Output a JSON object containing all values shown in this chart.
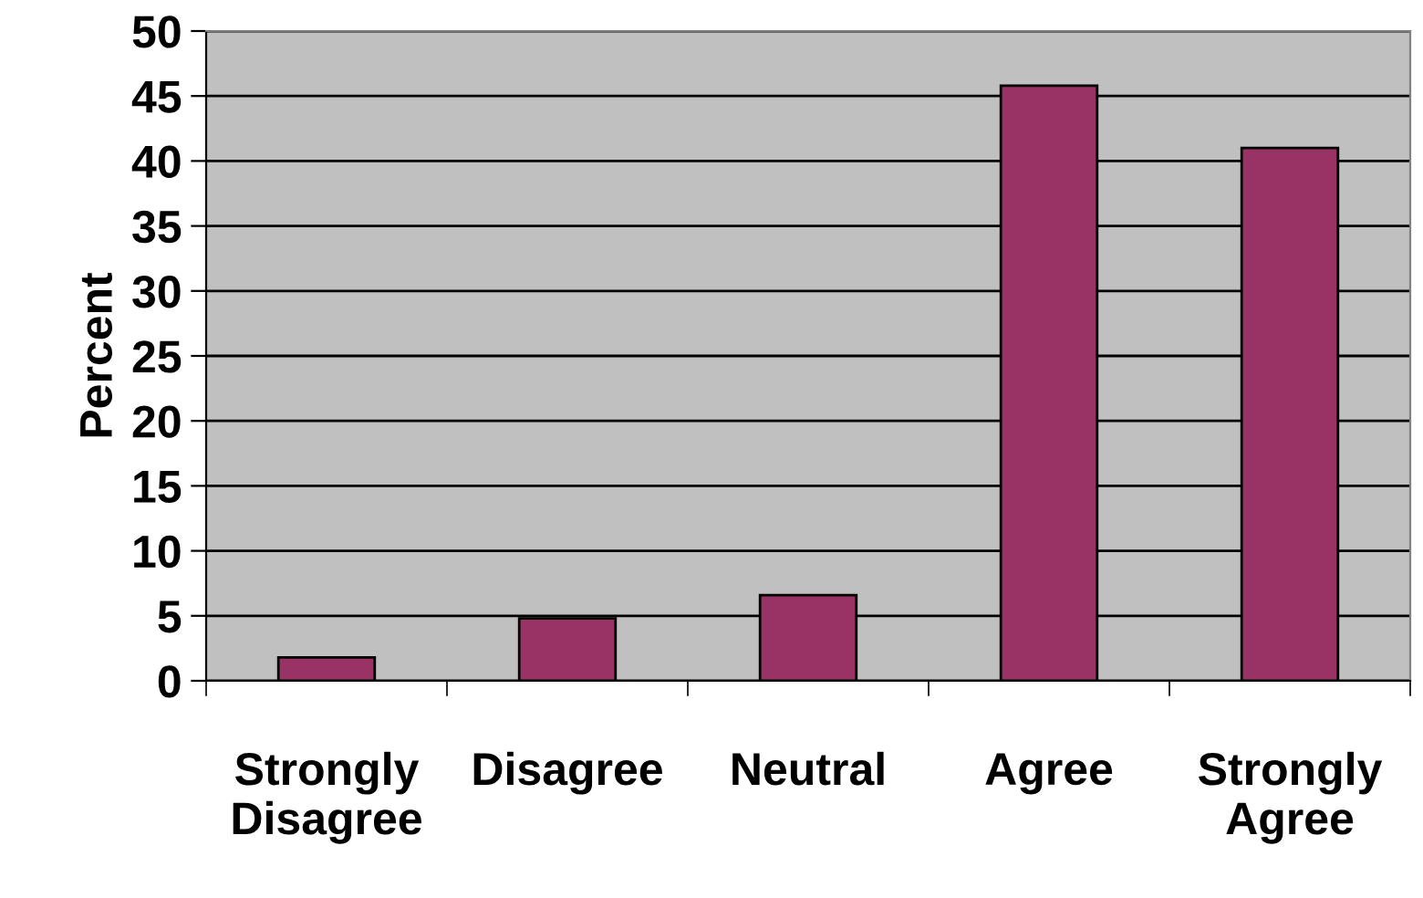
{
  "chart_data": {
    "type": "bar",
    "ylabel": "Percent",
    "categories": [
      "Strongly Disagree",
      "Disagree",
      "Neutral",
      "Agree",
      "Strongly Agree"
    ],
    "values": [
      1.8,
      4.8,
      6.6,
      45.8,
      41.0
    ],
    "color": "#993366",
    "ylim": [
      0,
      50
    ],
    "yticks": [
      0,
      5,
      10,
      15,
      20,
      25,
      30,
      35,
      40,
      45,
      50
    ],
    "grid": "y"
  }
}
